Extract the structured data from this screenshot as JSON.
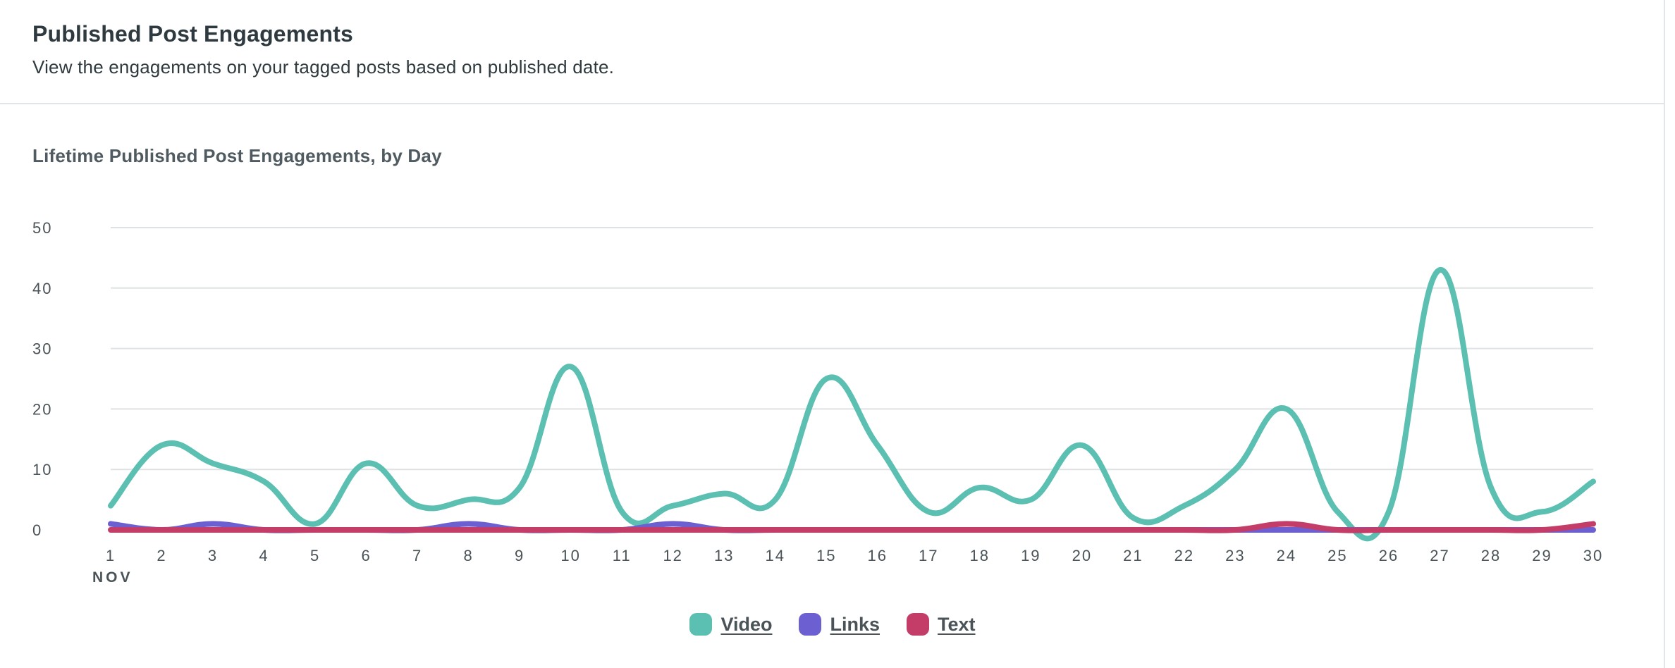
{
  "header": {
    "title": "Published Post Engagements",
    "subtitle": "View the engagements on your tagged posts based on published date."
  },
  "chart_data": {
    "type": "line",
    "title": "Lifetime Published Post Engagements, by Day",
    "xlabel": "",
    "ylabel": "",
    "x": [
      1,
      2,
      3,
      4,
      5,
      6,
      7,
      8,
      9,
      10,
      11,
      12,
      13,
      14,
      15,
      16,
      17,
      18,
      19,
      20,
      21,
      22,
      23,
      24,
      25,
      26,
      27,
      28,
      29,
      30
    ],
    "x_month_label": "NOV",
    "ylim": [
      0,
      50
    ],
    "yticks": [
      0,
      10,
      20,
      30,
      40,
      50
    ],
    "grid": true,
    "legend_position": "bottom-center",
    "series": [
      {
        "name": "Video",
        "color": "#5bbfb1",
        "values": [
          4,
          14,
          11,
          8,
          1,
          11,
          4,
          5,
          7,
          27,
          3,
          4,
          6,
          5,
          25,
          14,
          3,
          7,
          5,
          14,
          2,
          4,
          10,
          20,
          3,
          3,
          43,
          7,
          3,
          8
        ]
      },
      {
        "name": "Links",
        "color": "#6c5fd1",
        "values": [
          1,
          0,
          1,
          0,
          0,
          0,
          0,
          1,
          0,
          0,
          0,
          1,
          0,
          0,
          0,
          0,
          0,
          0,
          0,
          0,
          0,
          0,
          0,
          0,
          0,
          0,
          0,
          0,
          0,
          0
        ]
      },
      {
        "name": "Text",
        "color": "#c43d68",
        "values": [
          0,
          0,
          0,
          0,
          0,
          0,
          0,
          0,
          0,
          0,
          0,
          0,
          0,
          0,
          0,
          0,
          0,
          0,
          0,
          0,
          0,
          0,
          0,
          1,
          0,
          0,
          0,
          0,
          0,
          1
        ]
      }
    ]
  }
}
